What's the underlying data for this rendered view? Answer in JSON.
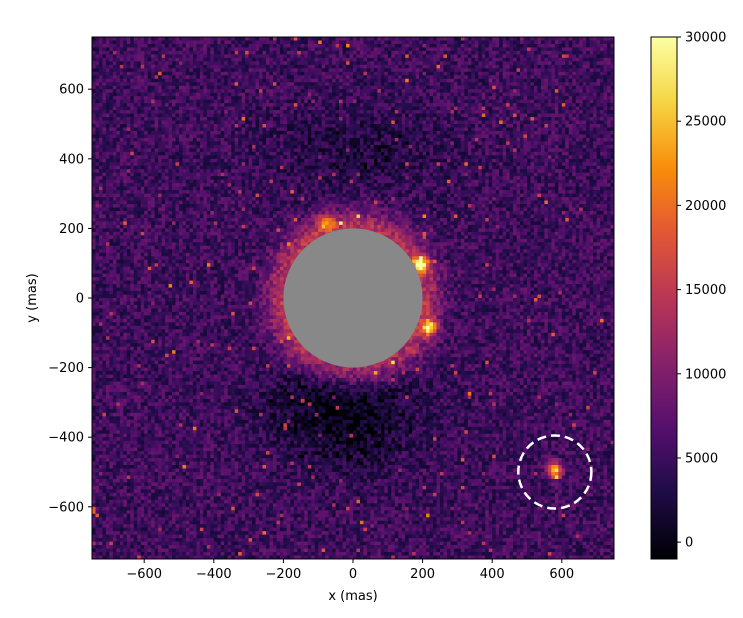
{
  "chart_data": {
    "type": "heatmap",
    "title": "",
    "xlabel": "x (mas)",
    "ylabel": "y (mas)",
    "xlim": [
      -750,
      750
    ],
    "ylim": [
      -750,
      750
    ],
    "x_ticks": [
      -600,
      -400,
      -200,
      0,
      200,
      400,
      600
    ],
    "x_tick_labels": [
      "−600",
      "−400",
      "−200",
      "0",
      "200",
      "400",
      "600"
    ],
    "y_ticks": [
      600,
      400,
      200,
      0,
      -200,
      -400,
      -600
    ],
    "y_tick_labels": [
      "600",
      "400",
      "200",
      "0",
      "−200",
      "−400",
      "−600"
    ],
    "colormap": "inferno",
    "color_range": [
      -1000,
      30000
    ],
    "colorbar_ticks": [
      30000,
      25000,
      20000,
      15000,
      10000,
      5000,
      0
    ],
    "colorbar_tick_labels": [
      "30000",
      "25000",
      "20000",
      "15000",
      "10000",
      "5000",
      "0"
    ],
    "mask": {
      "shape": "circle",
      "center": [
        0,
        0
      ],
      "radius": 200,
      "color": "#888888"
    },
    "companion_marker": {
      "shape": "dashed-circle",
      "center": [
        580,
        -500
      ],
      "radius": 105,
      "color": "#ffffff"
    },
    "bright_sources": [
      {
        "x": 580,
        "y": -495,
        "value": 28000
      },
      {
        "x": 220,
        "y": -85,
        "value": 24000
      },
      {
        "x": 195,
        "y": 95,
        "value": 26000
      },
      {
        "x": -80,
        "y": 215,
        "value": 18000
      }
    ],
    "grid": false
  }
}
